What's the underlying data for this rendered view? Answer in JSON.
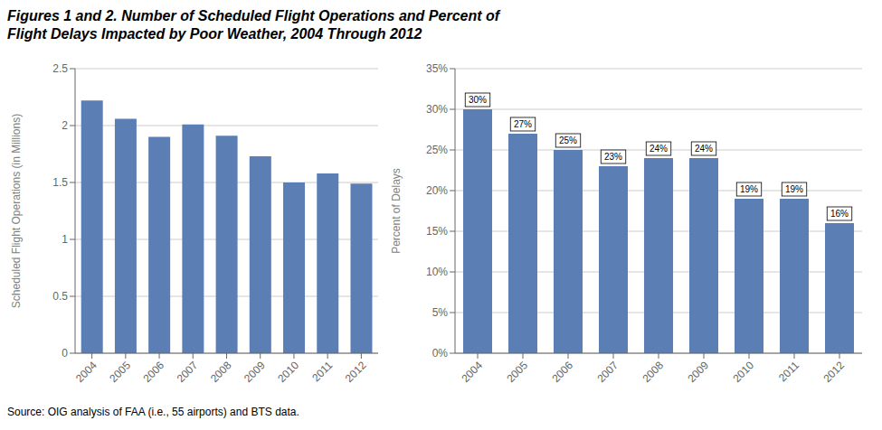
{
  "title": "Figures 1 and 2. Number of Scheduled Flight Operations and Percent of\nFlight Delays Impacted by Poor Weather, 2004 Through 2012",
  "annotations": [
    "Source: OIG analysis of FAA (i.e., 55 airports) and BTS data."
  ],
  "chart_data": [
    {
      "type": "bar",
      "categories": [
        "2004",
        "2005",
        "2006",
        "2007",
        "2008",
        "2009",
        "2010",
        "2011",
        "2012"
      ],
      "values": [
        2.22,
        2.06,
        1.9,
        2.01,
        1.91,
        1.73,
        1.5,
        1.58,
        1.49
      ],
      "color": "#5B7FB5",
      "y_label": "Scheduled Flight Operations (in Millions)",
      "ylim": [
        0,
        2.5
      ],
      "yticks": [
        0,
        0.5,
        1,
        1.5,
        2,
        2.5
      ],
      "grid": true
    },
    {
      "type": "bar",
      "categories": [
        "2004",
        "2005",
        "2006",
        "2007",
        "2008",
        "2009",
        "2010",
        "2011",
        "2012"
      ],
      "values": [
        0.3,
        0.27,
        0.25,
        0.23,
        0.24,
        0.24,
        0.19,
        0.19,
        0.16
      ],
      "value_labels": [
        "30%",
        "27%",
        "25%",
        "23%",
        "24%",
        "24%",
        "19%",
        "19%",
        "16%"
      ],
      "data_labels": true,
      "color": "#5B7FB5",
      "y_label": "Percent of Delays",
      "ylim": [
        0,
        0.35
      ],
      "yticks": [
        {
          "value": 0,
          "label": "0%"
        },
        {
          "value": 0.05,
          "label": "5%"
        },
        {
          "value": 0.1,
          "label": "10%"
        },
        {
          "value": 0.15,
          "label": "15%"
        },
        {
          "value": 0.2,
          "label": "20%"
        },
        {
          "value": 0.25,
          "label": "25%"
        },
        {
          "value": 0.3,
          "label": "30%"
        },
        {
          "value": 0.35,
          "label": "35%"
        }
      ],
      "grid": true
    }
  ]
}
